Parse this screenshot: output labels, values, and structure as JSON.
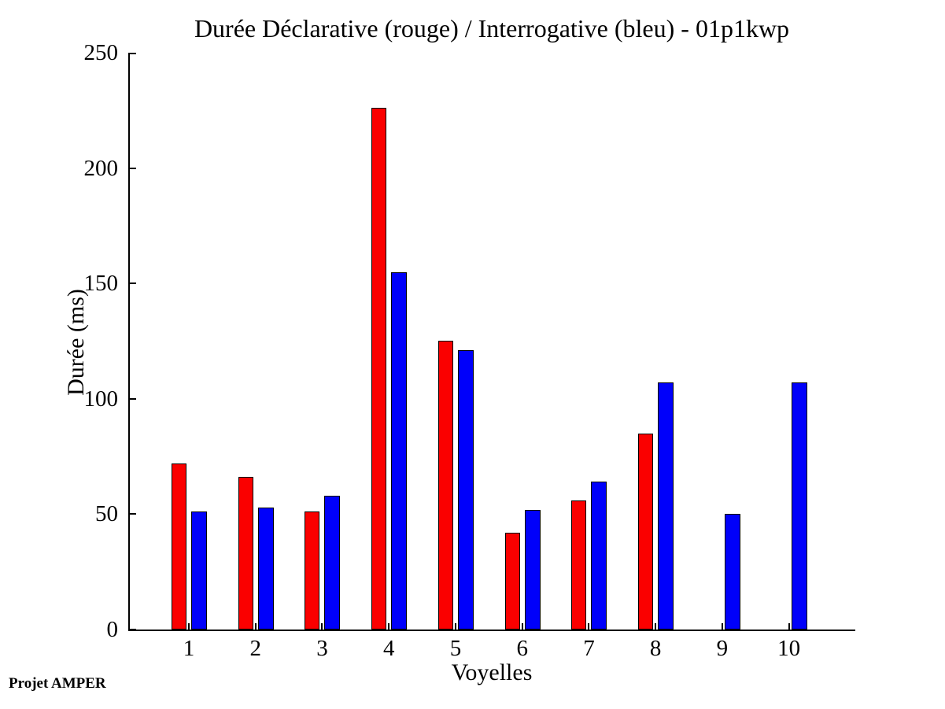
{
  "footer": "Projet AMPER",
  "chart_data": {
    "type": "bar",
    "title": "Durée Déclarative (rouge) / Interrogative (bleu) - 01p1kwp",
    "xlabel": "Voyelles",
    "ylabel": "Durée (ms)",
    "categories": [
      "1",
      "2",
      "3",
      "4",
      "5",
      "6",
      "7",
      "8",
      "9",
      "10"
    ],
    "series": [
      {
        "name": "Déclarative",
        "color": "#FA0000",
        "values": [
          72,
          66,
          51,
          226,
          125,
          42,
          56,
          85,
          0,
          0
        ]
      },
      {
        "name": "Interrogative",
        "color": "#0000FA",
        "values": [
          51,
          53,
          58,
          155,
          121,
          52,
          64,
          107,
          50,
          107
        ]
      }
    ],
    "ylim": [
      0,
      250
    ],
    "yticks": [
      0,
      50,
      100,
      150,
      200,
      250
    ],
    "grid": false,
    "legend_position": "none",
    "bar_edge_color": "#000000",
    "axis_color": "#000000",
    "background_color": "#FFFFFF"
  }
}
